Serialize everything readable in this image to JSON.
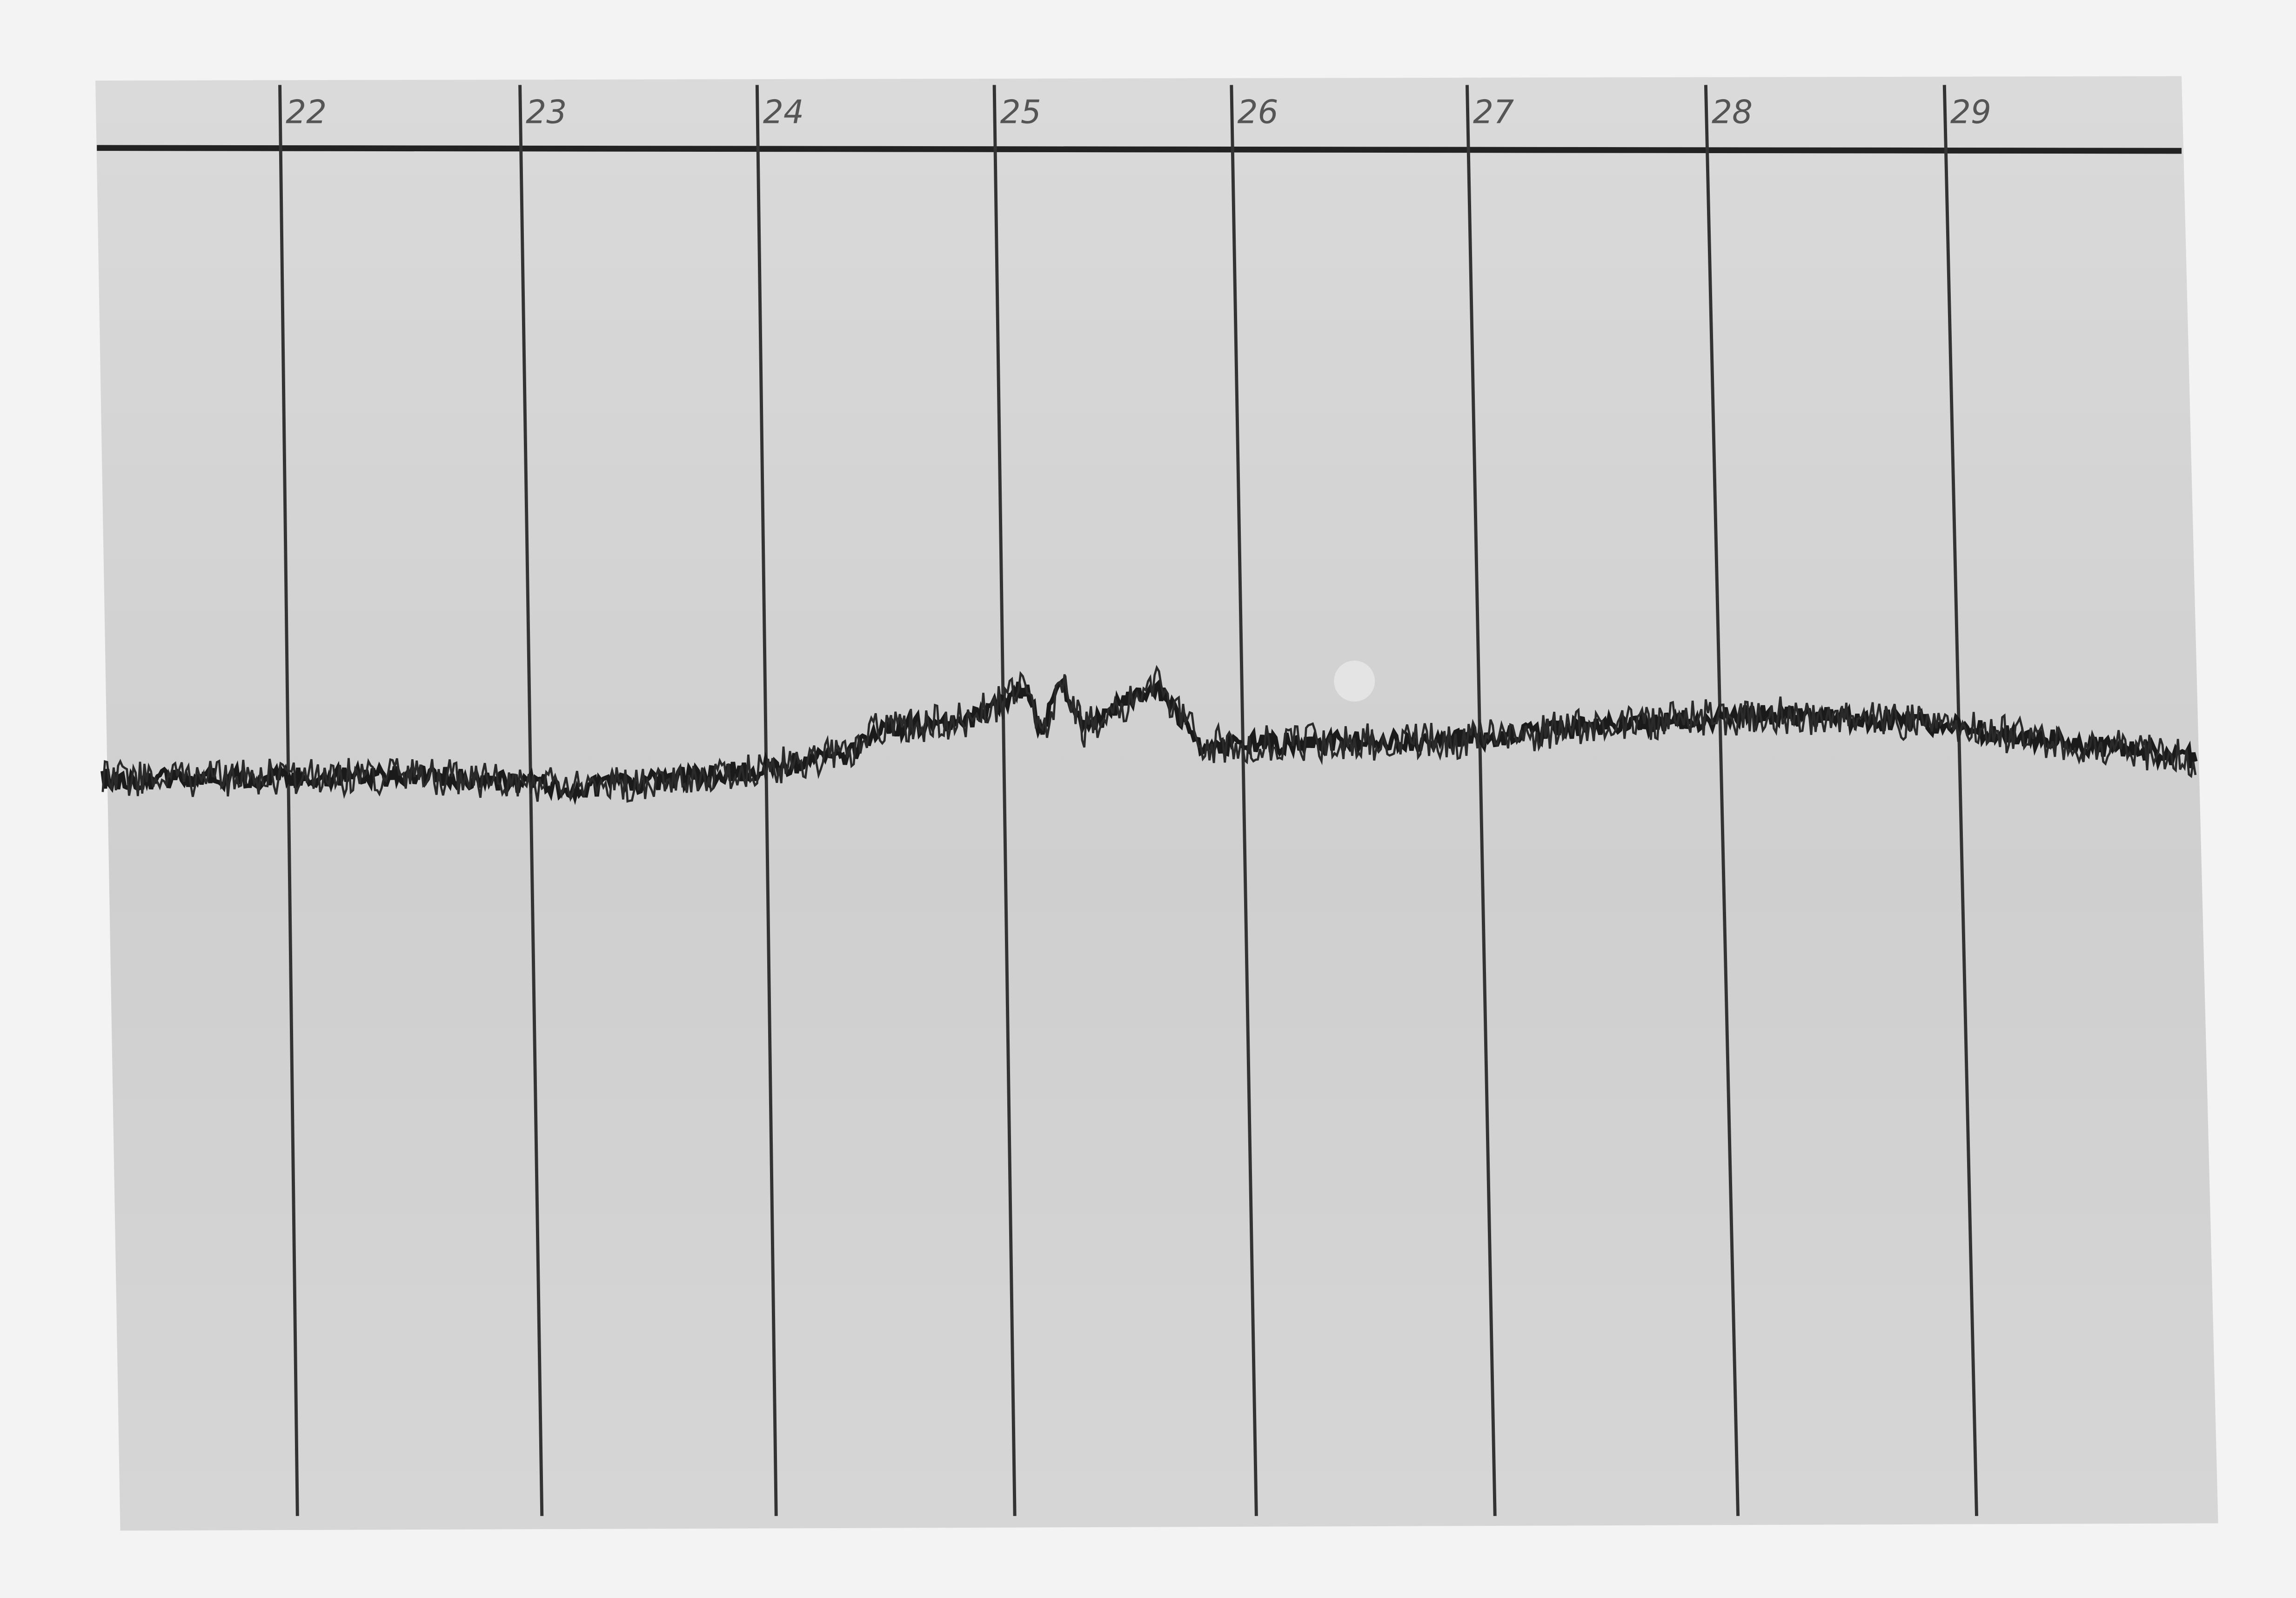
{
  "markers": [
    {
      "label": "22"
    },
    {
      "label": "23"
    },
    {
      "label": "24"
    },
    {
      "label": "25"
    },
    {
      "label": "26"
    },
    {
      "label": "27"
    },
    {
      "label": "28"
    },
    {
      "label": "29"
    }
  ]
}
